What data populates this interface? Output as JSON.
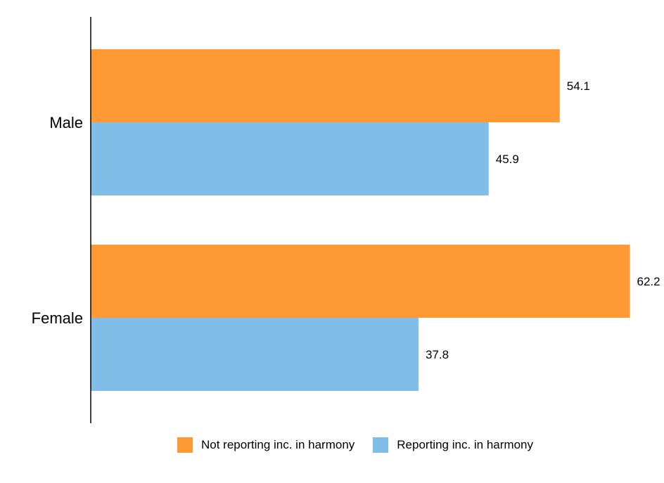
{
  "chart_data": {
    "type": "bar",
    "orientation": "horizontal",
    "title": "",
    "xlabel": "",
    "ylabel": "",
    "xlim": [
      0,
      66
    ],
    "grid": false,
    "legend_position": "bottom-center",
    "categories": [
      "Male",
      "Female"
    ],
    "series": [
      {
        "name": "Not reporting inc. in harmony",
        "color": "#FF9933",
        "values": [
          54.1,
          62.2
        ],
        "labels": [
          "54.1",
          "62.2"
        ]
      },
      {
        "name": "Reporting inc. in harmony",
        "color": "#80BEE8",
        "values": [
          45.9,
          37.8
        ],
        "labels": [
          "45.9",
          "37.8"
        ]
      }
    ]
  }
}
